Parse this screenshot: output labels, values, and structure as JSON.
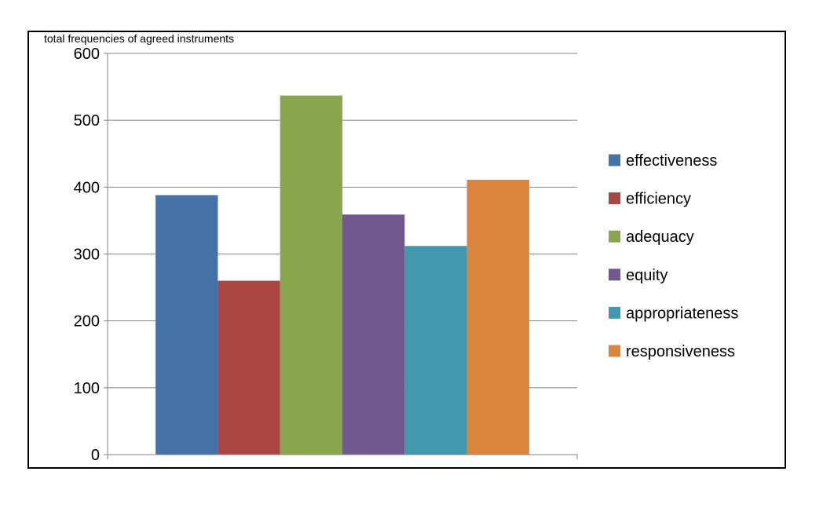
{
  "chart_data": {
    "type": "bar",
    "ylabel": "total frequencies of agreed instruments",
    "ylim": [
      0,
      600
    ],
    "yticks": [
      0,
      100,
      200,
      300,
      400,
      500,
      600
    ],
    "grid": true,
    "legend_position": "right",
    "series": [
      {
        "name": "effectiveness",
        "value": 388,
        "color": "#4572a7"
      },
      {
        "name": "efficiency",
        "value": 260,
        "color": "#aa4643"
      },
      {
        "name": "adequacy",
        "value": 537,
        "color": "#89a54e"
      },
      {
        "name": "equity",
        "value": 359,
        "color": "#71588f"
      },
      {
        "name": "appropriateness",
        "value": 312,
        "color": "#4198af"
      },
      {
        "name": "responsiveness",
        "value": 411,
        "color": "#db843d"
      }
    ]
  }
}
